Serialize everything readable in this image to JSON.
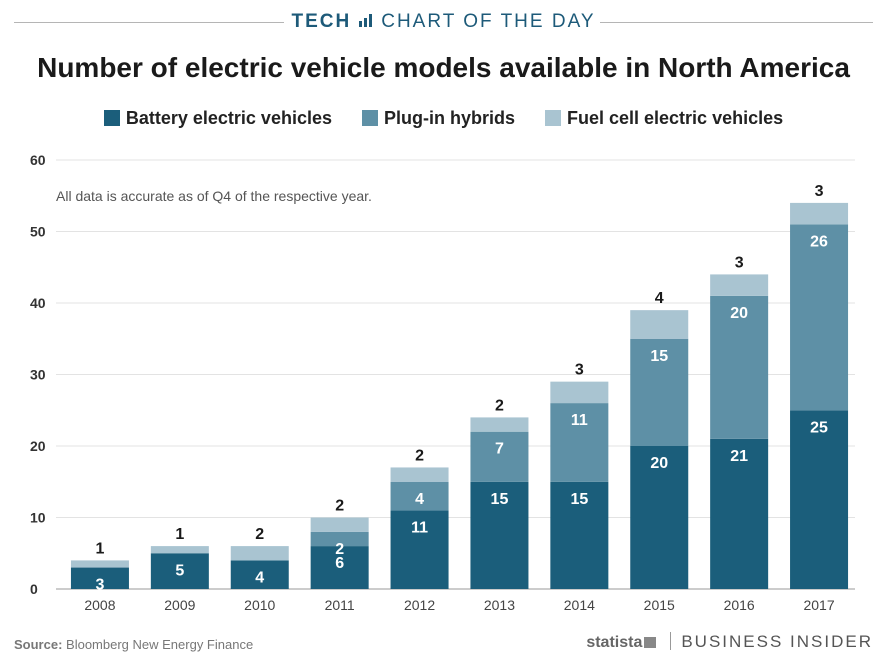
{
  "banner": {
    "left": "TECH",
    "right": "CHART OF THE DAY"
  },
  "chart_data": {
    "type": "bar",
    "stacked": true,
    "title": "Number of electric vehicle models available in North America",
    "annotation": "All data is accurate as of Q4 of the respective year.",
    "categories": [
      "2008",
      "2009",
      "2010",
      "2011",
      "2012",
      "2013",
      "2014",
      "2015",
      "2016",
      "2017"
    ],
    "series": [
      {
        "name": "Battery electric vehicles",
        "color": "#1b5e7b",
        "values": [
          3,
          5,
          4,
          6,
          11,
          15,
          15,
          20,
          21,
          25
        ]
      },
      {
        "name": "Plug-in hybrids",
        "color": "#5e90a6",
        "values": [
          0,
          0,
          0,
          2,
          4,
          7,
          11,
          15,
          20,
          26
        ]
      },
      {
        "name": "Fuel cell electric vehicles",
        "color": "#a9c4d1",
        "values": [
          1,
          1,
          2,
          2,
          2,
          2,
          3,
          4,
          3,
          3
        ]
      }
    ],
    "yticks": [
      "0",
      "10",
      "20",
      "30",
      "40",
      "50",
      "60"
    ],
    "ylim": [
      0,
      60
    ],
    "grid": true,
    "legend": "top"
  },
  "footer": {
    "source_label": "Source:",
    "source_text": "Bloomberg New Energy Finance",
    "statista": "statista",
    "publisher": "BUSINESS INSIDER"
  }
}
